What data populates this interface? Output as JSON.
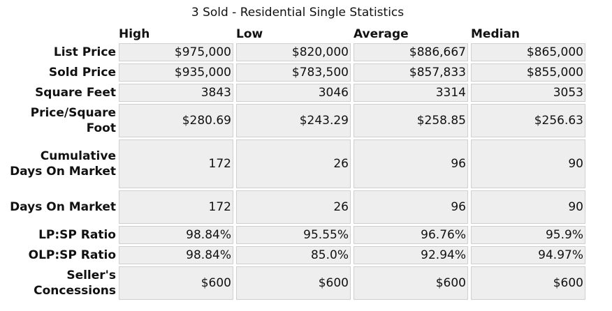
{
  "title": "3 Sold - Residential Single Statistics",
  "columns": [
    "High",
    "Low",
    "Average",
    "Median"
  ],
  "rows": [
    {
      "label": "List Price",
      "values": [
        "$975,000",
        "$820,000",
        "$886,667",
        "$865,000"
      ]
    },
    {
      "label": "Sold Price",
      "values": [
        "$935,000",
        "$783,500",
        "$857,833",
        "$855,000"
      ]
    },
    {
      "label": "Square Feet",
      "values": [
        "3843",
        "3046",
        "3314",
        "3053"
      ]
    },
    {
      "label": "Price/Square Foot",
      "values": [
        "$280.69",
        "$243.29",
        "$258.85",
        "$256.63"
      ]
    },
    {
      "label": "Cumulative Days On Market",
      "values": [
        "172",
        "26",
        "96",
        "90"
      ]
    },
    {
      "label": "Days On Market",
      "values": [
        "172",
        "26",
        "96",
        "90"
      ]
    },
    {
      "label": "LP:SP Ratio",
      "values": [
        "98.84%",
        "95.55%",
        "96.76%",
        "95.9%"
      ]
    },
    {
      "label": "OLP:SP Ratio",
      "values": [
        "98.84%",
        "85.0%",
        "92.94%",
        "94.97%"
      ]
    },
    {
      "label": "Seller's Concessions",
      "values": [
        "$600",
        "$600",
        "$600",
        "$600"
      ]
    }
  ]
}
